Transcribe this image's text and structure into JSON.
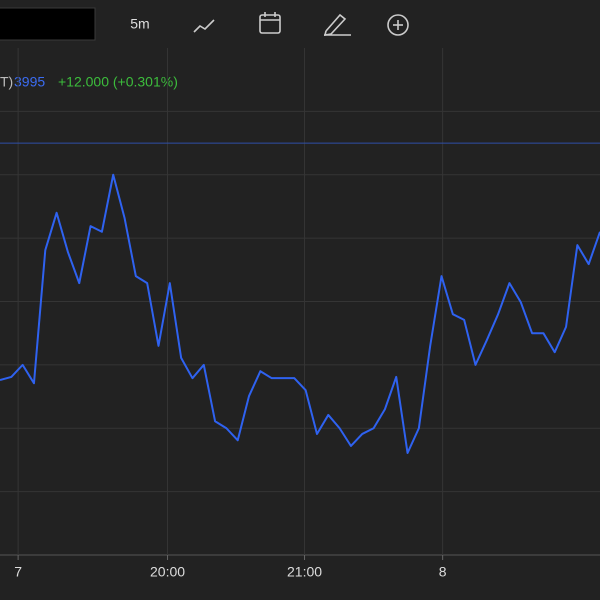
{
  "toolbar": {
    "interval": "5m"
  },
  "legend": {
    "symbol_tail": "T)",
    "price": "3995",
    "change": "+12.000 (+0.301%)"
  },
  "chart_data": {
    "type": "line",
    "grid": true,
    "xlim": [
      0,
      53
    ],
    "ylim": [
      0,
      8
    ],
    "yticks": [
      1,
      2,
      3,
      4,
      5,
      6,
      7
    ],
    "xticks": [
      {
        "value": 1.6,
        "label": "7"
      },
      {
        "value": 14.8,
        "label": "20:00"
      },
      {
        "value": 26.9,
        "label": "21:00"
      },
      {
        "value": 39.1,
        "label": "8"
      }
    ],
    "reference_line": 6.5,
    "series": [
      {
        "color": "#2f62f0",
        "values": [
          2.76,
          2.81,
          3.0,
          2.71,
          4.81,
          5.4,
          4.78,
          4.29,
          5.19,
          5.1,
          6.0,
          5.32,
          4.4,
          4.29,
          3.3,
          4.29,
          3.11,
          2.79,
          3.0,
          2.11,
          2.0,
          1.81,
          2.51,
          2.9,
          2.79,
          2.79,
          2.79,
          2.6,
          1.91,
          2.21,
          2.0,
          1.72,
          1.91,
          2.0,
          2.3,
          2.81,
          1.61,
          2.0,
          3.3,
          4.4,
          3.8,
          3.71,
          3.0,
          3.39,
          3.8,
          4.29,
          3.99,
          3.5,
          3.5,
          3.2,
          3.6,
          4.89,
          4.59,
          5.1
        ]
      }
    ]
  }
}
